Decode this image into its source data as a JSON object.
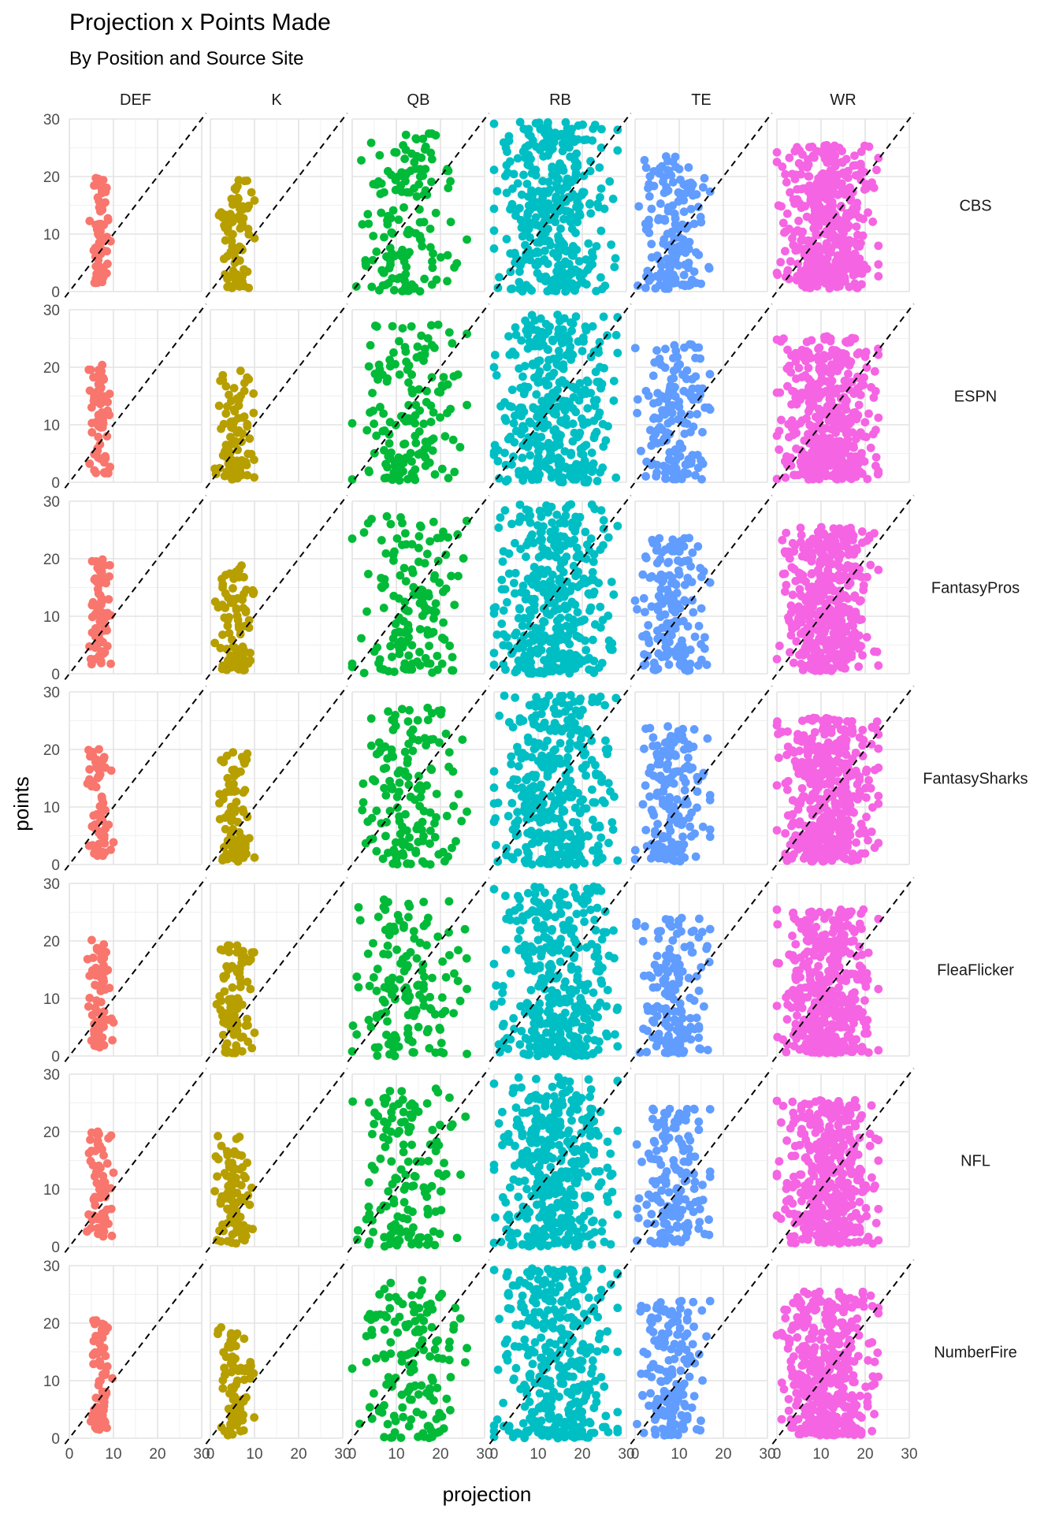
{
  "chart_data": {
    "type": "scatter",
    "title": "Projection x Points Made",
    "subtitle": "By Position and Source Site",
    "xlabel": "projection",
    "ylabel": "points",
    "xlim": [
      0,
      30
    ],
    "ylim": [
      0,
      30
    ],
    "ticks": [
      0,
      10,
      20,
      30
    ],
    "reference_line": "y = x (dashed)",
    "grid": true,
    "legend": "none",
    "column_facets": [
      "DEF",
      "K",
      "QB",
      "RB",
      "TE",
      "WR"
    ],
    "row_facets": [
      "CBS",
      "ESPN",
      "FantasyPros",
      "FantasySharks",
      "FleaFlicker",
      "NFL",
      "NumberFire"
    ],
    "colors": {
      "DEF": "#F8766D",
      "K": "#B79F00",
      "QB": "#00BA38",
      "RB": "#00BFC4",
      "TE": "#619CFF",
      "WR": "#F564E3"
    },
    "point_profiles": {
      "DEF": {
        "x_range": [
          4,
          10
        ],
        "y_range": [
          1.5,
          20.5
        ],
        "approx_points_per_panel": 70
      },
      "K": {
        "x_range": [
          1,
          10
        ],
        "y_range": [
          0.5,
          19.5
        ],
        "approx_points_per_panel": 90
      },
      "QB": {
        "x_range": [
          0,
          26
        ],
        "y_range": [
          0,
          27.5
        ],
        "approx_points_per_panel": 150
      },
      "RB": {
        "x_range": [
          0,
          28
        ],
        "y_range": [
          0,
          29.5
        ],
        "approx_points_per_panel": 380
      },
      "TE": {
        "x_range": [
          0,
          17
        ],
        "y_range": [
          0.5,
          24
        ],
        "approx_points_per_panel": 160
      },
      "WR": {
        "x_range": [
          0,
          23
        ],
        "y_range": [
          0.5,
          25.5
        ],
        "approx_points_per_panel": 420
      }
    }
  }
}
